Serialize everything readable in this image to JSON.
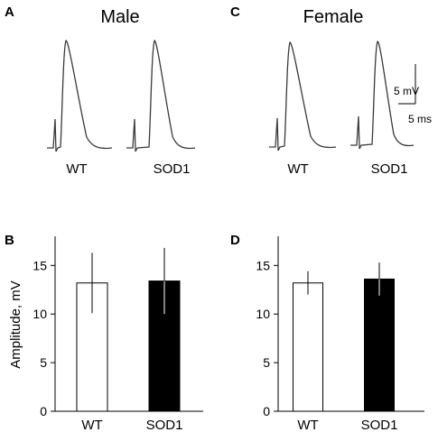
{
  "figure": {
    "panels": {
      "A": {
        "letter": "A",
        "title": "Male",
        "trace_labels": [
          "WT",
          "SOD1"
        ]
      },
      "B": {
        "letter": "B"
      },
      "C": {
        "letter": "C",
        "title": "Female",
        "trace_labels": [
          "WT",
          "SOD1"
        ]
      },
      "D": {
        "letter": "D"
      }
    },
    "scale_bar": {
      "vertical_label": "5 mV",
      "horizontal_label": "5 ms"
    },
    "colors": {
      "trace": "#3a3a3a",
      "wt_bar": "#ffffff",
      "sod1_bar": "#000000",
      "axis": "#000000"
    }
  },
  "chart_data": [
    {
      "panel": "B",
      "type": "bar",
      "categories": [
        "WT",
        "SOD1"
      ],
      "values": [
        13.2,
        13.4
      ],
      "error": [
        3.1,
        3.4
      ],
      "ylabel": "Amplitude, mV",
      "ylim": [
        0,
        18
      ],
      "yticks": [
        0,
        5,
        10,
        15
      ],
      "fills": [
        "#ffffff",
        "#000000"
      ]
    },
    {
      "panel": "D",
      "type": "bar",
      "categories": [
        "WT",
        "SOD1"
      ],
      "values": [
        13.2,
        13.6
      ],
      "error": [
        1.2,
        1.7
      ],
      "ylabel": "",
      "ylim": [
        0,
        18
      ],
      "yticks": [
        0,
        5,
        10,
        15
      ],
      "fills": [
        "#ffffff",
        "#000000"
      ]
    }
  ]
}
